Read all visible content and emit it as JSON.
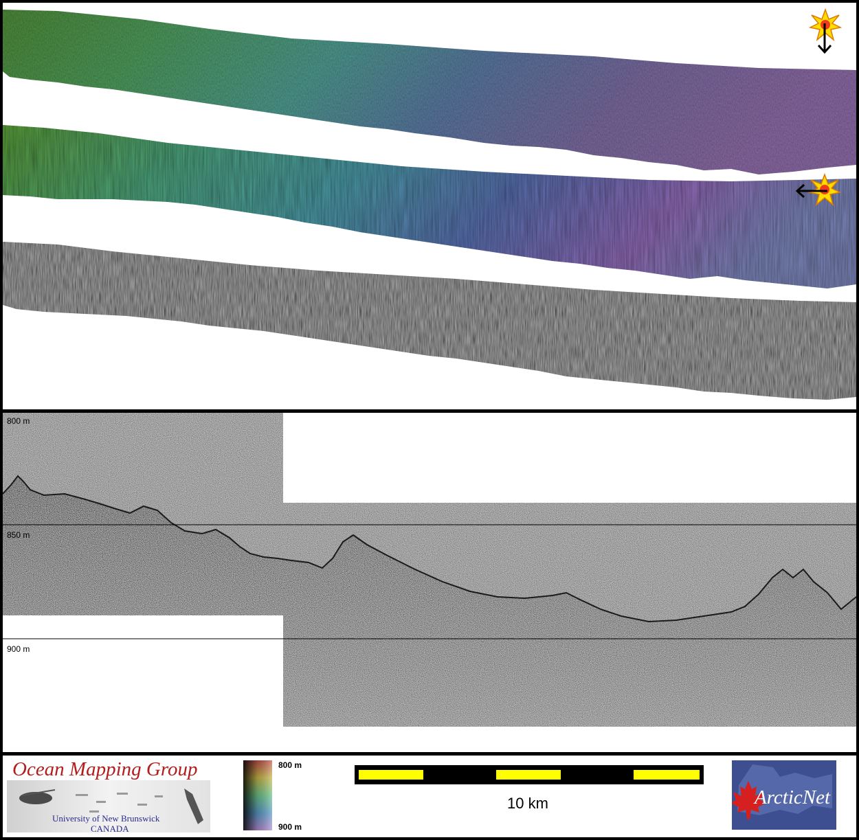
{
  "profile": {
    "depth_labels": [
      "800 m",
      "850 m",
      "900 m"
    ]
  },
  "footer": {
    "ocean_mapping": {
      "title": "Ocean Mapping Group",
      "line1": "University of New Brunswick",
      "line2": "CANADA"
    },
    "legend": {
      "top": "800 m",
      "bottom": "900 m"
    },
    "scale": {
      "label": "10 km"
    },
    "arcticnet": {
      "label": "ArcticNet"
    }
  },
  "colors": {
    "frame": "#000000",
    "scale_yellow": "#ffff00",
    "omg_red": "#b31d1d",
    "arcticnet_blue": "#3d4f90",
    "maple_red": "#d61f1f"
  },
  "icons": [
    "sun-illumination-icon",
    "arrow-down-icon",
    "arrow-left-icon",
    "maple-leaf-icon"
  ]
}
